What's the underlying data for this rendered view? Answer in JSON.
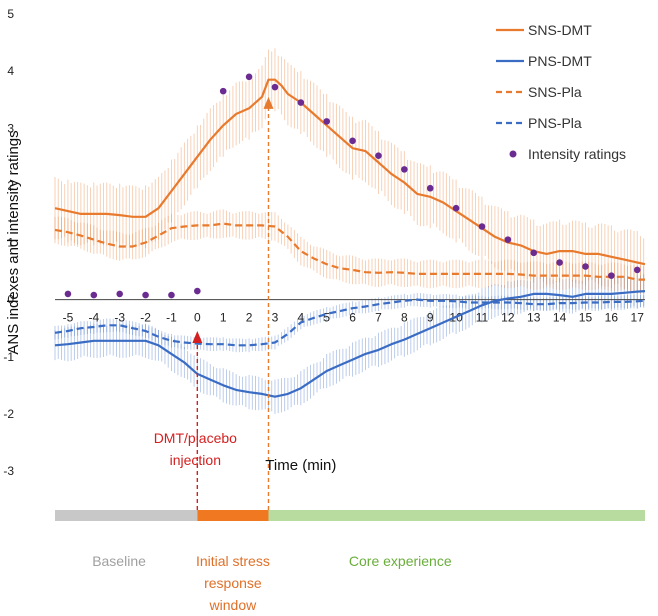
{
  "chart_data": {
    "type": "line",
    "title": "",
    "xlabel": "Time (min)",
    "ylabel": "ANS indexes and intensity ratings",
    "xlim": [
      -5.5,
      17.3
    ],
    "ylim": [
      -3,
      5
    ],
    "yticks": [
      -3,
      -2,
      -1,
      0,
      1,
      2,
      3,
      4,
      5
    ],
    "xticks": [
      -5,
      -4,
      -3,
      -2,
      -1,
      0,
      1,
      2,
      3,
      4,
      5,
      6,
      7,
      8,
      9,
      10,
      11,
      12,
      13,
      14,
      15,
      16,
      17
    ],
    "series": [
      {
        "name": "SNS-DMT",
        "color": "#E87A2E",
        "dash": "solid",
        "error": 0.55,
        "x": [
          -5.5,
          -5,
          -4.5,
          -4,
          -3.5,
          -3,
          -2.5,
          -2,
          -1.5,
          -1,
          -0.5,
          0,
          0.5,
          1,
          1.5,
          2,
          2.5,
          2.75,
          3,
          3.25,
          3.5,
          4,
          4.5,
          5,
          5.5,
          6,
          6.5,
          7,
          7.5,
          8,
          8.5,
          9,
          9.5,
          10,
          10.5,
          11,
          11.5,
          12,
          12.5,
          13,
          13.5,
          14,
          14.5,
          15,
          15.5,
          16,
          16.5,
          17,
          17.3
        ],
        "values": [
          1.6,
          1.55,
          1.5,
          1.5,
          1.5,
          1.48,
          1.45,
          1.45,
          1.6,
          1.9,
          2.2,
          2.5,
          2.8,
          3.05,
          3.25,
          3.35,
          3.55,
          3.85,
          3.85,
          3.75,
          3.6,
          3.45,
          3.25,
          3.05,
          2.85,
          2.65,
          2.6,
          2.4,
          2.2,
          2.05,
          1.85,
          1.8,
          1.7,
          1.55,
          1.4,
          1.25,
          1.1,
          1.0,
          0.95,
          0.85,
          0.8,
          0.85,
          0.85,
          0.8,
          0.8,
          0.75,
          0.7,
          0.65,
          0.62
        ]
      },
      {
        "name": "PNS-DMT",
        "color": "#3A6CC4",
        "dash": "solid",
        "error": 0.3,
        "x": [
          -5.5,
          -5,
          -4.5,
          -4,
          -3.5,
          -3,
          -2.5,
          -2,
          -1.5,
          -1,
          -0.5,
          0,
          0.5,
          1,
          1.5,
          2,
          2.5,
          3,
          3.5,
          4,
          4.5,
          5,
          5.5,
          6,
          6.5,
          7,
          7.5,
          8,
          8.5,
          9,
          9.5,
          10,
          10.5,
          11,
          11.5,
          12,
          12.5,
          13,
          13.5,
          14,
          14.5,
          15,
          15.5,
          16,
          16.5,
          17,
          17.3
        ],
        "values": [
          -0.8,
          -0.78,
          -0.75,
          -0.72,
          -0.72,
          -0.72,
          -0.72,
          -0.72,
          -0.8,
          -0.95,
          -1.1,
          -1.3,
          -1.4,
          -1.5,
          -1.58,
          -1.62,
          -1.65,
          -1.7,
          -1.65,
          -1.55,
          -1.4,
          -1.25,
          -1.15,
          -1.05,
          -0.95,
          -0.88,
          -0.78,
          -0.7,
          -0.6,
          -0.5,
          -0.4,
          -0.3,
          -0.2,
          -0.1,
          -0.02,
          0.02,
          0.05,
          0.1,
          0.1,
          0.08,
          0.05,
          0.1,
          0.1,
          0.1,
          0.12,
          0.14,
          0.15
        ]
      },
      {
        "name": "SNS-Pla",
        "color": "#E87A2E",
        "dash": "dashed",
        "error": 0.25,
        "x": [
          -5.5,
          -5,
          -4.5,
          -4,
          -3.5,
          -3,
          -2.5,
          -2,
          -1.5,
          -1,
          -0.5,
          0,
          0.5,
          1,
          1.5,
          2,
          2.5,
          3,
          3.5,
          4,
          4.5,
          5,
          5.5,
          6,
          6.5,
          7,
          7.5,
          8,
          8.5,
          9,
          9.5,
          10,
          10.5,
          11,
          11.5,
          12,
          12.5,
          13,
          13.5,
          14,
          14.5,
          15,
          15.5,
          16,
          16.5,
          17,
          17.3
        ],
        "values": [
          1.22,
          1.18,
          1.12,
          1.05,
          0.98,
          0.93,
          0.93,
          1.0,
          1.12,
          1.25,
          1.28,
          1.3,
          1.3,
          1.33,
          1.3,
          1.3,
          1.3,
          1.28,
          1.1,
          0.85,
          0.72,
          0.62,
          0.55,
          0.52,
          0.48,
          0.47,
          0.48,
          0.47,
          0.45,
          0.45,
          0.45,
          0.45,
          0.45,
          0.45,
          0.45,
          0.45,
          0.44,
          0.42,
          0.42,
          0.42,
          0.42,
          0.42,
          0.4,
          0.4,
          0.4,
          0.35,
          0.35
        ]
      },
      {
        "name": "PNS-Pla",
        "color": "#3A6CC4",
        "dash": "dashed",
        "error": 0.12,
        "x": [
          -5.5,
          -5,
          -4.5,
          -4,
          -3.5,
          -3,
          -2.5,
          -2,
          -1.5,
          -1,
          -0.5,
          0,
          0.5,
          1,
          1.5,
          2,
          2.5,
          3,
          3.5,
          4,
          4.5,
          5,
          5.5,
          6,
          6.5,
          7,
          7.5,
          8,
          8.5,
          9,
          9.5,
          10,
          10.5,
          11,
          11.5,
          12,
          12.5,
          13,
          13.5,
          14,
          14.5,
          15,
          15.5,
          16,
          16.5,
          17,
          17.3
        ],
        "values": [
          -0.58,
          -0.55,
          -0.5,
          -0.48,
          -0.45,
          -0.45,
          -0.5,
          -0.55,
          -0.65,
          -0.72,
          -0.75,
          -0.77,
          -0.78,
          -0.78,
          -0.8,
          -0.8,
          -0.78,
          -0.75,
          -0.6,
          -0.4,
          -0.32,
          -0.25,
          -0.2,
          -0.15,
          -0.12,
          -0.08,
          -0.05,
          -0.02,
          0.0,
          -0.02,
          -0.02,
          -0.03,
          -0.05,
          -0.05,
          -0.05,
          -0.05,
          -0.06,
          -0.08,
          -0.08,
          -0.06,
          -0.06,
          -0.05,
          -0.05,
          -0.04,
          -0.04,
          -0.03,
          -0.02
        ]
      }
    ],
    "points": {
      "name": "Intensity ratings",
      "color": "#6A2C91",
      "x": [
        -5,
        -4,
        -3,
        -2,
        -1,
        0,
        1,
        2,
        3,
        4,
        5,
        6,
        7,
        8,
        9,
        10,
        11,
        12,
        13,
        14,
        15,
        16,
        17
      ],
      "values": [
        0.1,
        0.08,
        0.1,
        0.08,
        0.08,
        0.15,
        3.65,
        3.9,
        3.72,
        3.45,
        3.12,
        2.78,
        2.52,
        2.28,
        1.95,
        1.6,
        1.28,
        1.05,
        0.82,
        0.65,
        0.58,
        0.42,
        0.52
      ]
    },
    "legend": [
      {
        "label": "SNS-DMT",
        "kind": "solid",
        "color": "#E87A2E"
      },
      {
        "label": "PNS-DMT",
        "kind": "solid",
        "color": "#3A6CC4"
      },
      {
        "label": "SNS-Pla",
        "kind": "dashed",
        "color": "#E87A2E"
      },
      {
        "label": "PNS-Pla",
        "kind": "dashed",
        "color": "#3A6CC4"
      },
      {
        "label": "Intensity ratings",
        "kind": "dot",
        "color": "#6A2C91"
      }
    ],
    "legend_position": "top-right",
    "markers": [
      {
        "x": 0,
        "color": "#D42020",
        "label_lines": [
          "DMT/placebo",
          "injection"
        ]
      },
      {
        "x": 2.75,
        "color": "#E87A2E",
        "label_lines": []
      }
    ],
    "phases": [
      {
        "label_lines": [
          "Baseline"
        ],
        "from": -5.5,
        "to": 0,
        "color": "#C8C8C8",
        "text_color": "#A0A0A0"
      },
      {
        "label_lines": [
          "Initial stress",
          "response",
          "window"
        ],
        "from": 0,
        "to": 2.75,
        "color": "#F07820",
        "text_color": "#E07028"
      },
      {
        "label_lines": [
          "Core experience"
        ],
        "from": 2.75,
        "to": 17.3,
        "color": "#B8DCA0",
        "text_color": "#6AAE3A"
      }
    ]
  }
}
